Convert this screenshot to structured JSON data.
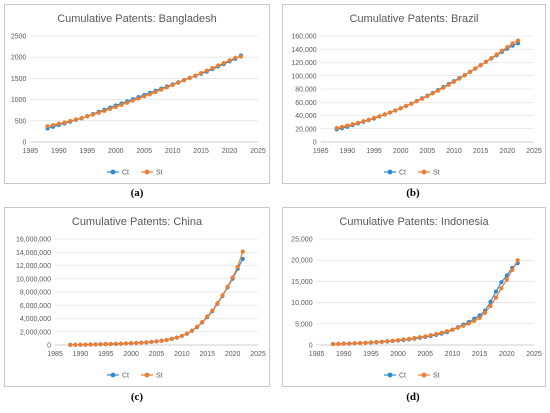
{
  "chart_data": [
    {
      "type": "line",
      "title": "Cumulative Patents: Bangladesh",
      "caption": "(a)",
      "xlim": [
        1985,
        2025
      ],
      "xticks": [
        "1985",
        "1990",
        "1995",
        "2000",
        "2005",
        "2010",
        "2015",
        "2020",
        "2025"
      ],
      "ylim": [
        0,
        2500
      ],
      "yticks": [
        "0",
        "500",
        "1000",
        "1500",
        "2000",
        "2500"
      ],
      "x": [
        1988,
        1989,
        1990,
        1991,
        1992,
        1993,
        1994,
        1995,
        1996,
        1997,
        1998,
        1999,
        2000,
        2001,
        2002,
        2003,
        2004,
        2005,
        2006,
        2007,
        2008,
        2009,
        2010,
        2011,
        2012,
        2013,
        2014,
        2015,
        2016,
        2017,
        2018,
        2019,
        2020,
        2021,
        2022
      ],
      "series": [
        {
          "name": "Ct",
          "color": "#2e8bd0",
          "values": [
            320,
            360,
            400,
            440,
            480,
            520,
            560,
            610,
            660,
            710,
            760,
            810,
            860,
            910,
            960,
            1010,
            1060,
            1110,
            1160,
            1210,
            1260,
            1310,
            1360,
            1410,
            1460,
            1510,
            1560,
            1610,
            1660,
            1720,
            1780,
            1840,
            1900,
            1960,
            2040
          ]
        },
        {
          "name": "St",
          "color": "#ed7d31",
          "values": [
            370,
            400,
            430,
            460,
            495,
            530,
            565,
            605,
            645,
            690,
            735,
            780,
            825,
            875,
            925,
            975,
            1025,
            1075,
            1125,
            1180,
            1235,
            1290,
            1345,
            1400,
            1455,
            1510,
            1565,
            1625,
            1685,
            1745,
            1805,
            1865,
            1925,
            1985,
            2015
          ]
        }
      ],
      "legend": [
        "Ct",
        "St"
      ]
    },
    {
      "type": "line",
      "title": "Cumulative Patents: Brazil",
      "caption": "(b)",
      "xlim": [
        1985,
        2025
      ],
      "xticks": [
        "1985",
        "1990",
        "1995",
        "2000",
        "2005",
        "2010",
        "2015",
        "2020",
        "2025"
      ],
      "ylim": [
        0,
        160000
      ],
      "yticks": [
        "0",
        "20,000",
        "40,000",
        "60,000",
        "80,000",
        "100,000",
        "120,000",
        "140,000",
        "160,000"
      ],
      "x": [
        1988,
        1989,
        1990,
        1991,
        1992,
        1993,
        1994,
        1995,
        1996,
        1997,
        1998,
        1999,
        2000,
        2001,
        2002,
        2003,
        2004,
        2005,
        2006,
        2007,
        2008,
        2009,
        2010,
        2011,
        2012,
        2013,
        2014,
        2015,
        2016,
        2017,
        2018,
        2019,
        2020,
        2021,
        2022
      ],
      "series": [
        {
          "name": "Ct",
          "color": "#2e8bd0",
          "values": [
            19000,
            21000,
            23000,
            25500,
            28000,
            30500,
            33000,
            35500,
            38500,
            41500,
            44500,
            47500,
            51000,
            54500,
            58000,
            62000,
            66000,
            70000,
            74000,
            78500,
            83000,
            87500,
            92000,
            96500,
            101000,
            106000,
            111000,
            116000,
            121000,
            126000,
            131000,
            136000,
            141000,
            145500,
            149000
          ]
        },
        {
          "name": "St",
          "color": "#ed7d31",
          "values": [
            21000,
            22800,
            24700,
            26800,
            29000,
            31300,
            33700,
            36200,
            38900,
            41700,
            44600,
            47700,
            50900,
            54300,
            57800,
            61500,
            65300,
            69200,
            73300,
            77500,
            81900,
            86400,
            91000,
            95700,
            100600,
            105600,
            110700,
            115900,
            121200,
            126600,
            132100,
            137700,
            143300,
            148900,
            153000
          ]
        }
      ],
      "legend": [
        "Ct",
        "St"
      ]
    },
    {
      "type": "line",
      "title": "Cumulative Patents: China",
      "caption": "(c)",
      "xlim": [
        1985,
        2025
      ],
      "xticks": [
        "1985",
        "1990",
        "1995",
        "2000",
        "2005",
        "2010",
        "2015",
        "2020",
        "2025"
      ],
      "ylim": [
        0,
        16000000
      ],
      "yticks": [
        "0",
        "2,000,000",
        "4,000,000",
        "6,000,000",
        "8,000,000",
        "10,000,000",
        "12,000,000",
        "14,000,000",
        "16,000,000"
      ],
      "x": [
        1988,
        1989,
        1990,
        1991,
        1992,
        1993,
        1994,
        1995,
        1996,
        1997,
        1998,
        1999,
        2000,
        2001,
        2002,
        2003,
        2004,
        2005,
        2006,
        2007,
        2008,
        2009,
        2010,
        2011,
        2012,
        2013,
        2014,
        2015,
        2016,
        2017,
        2018,
        2019,
        2020,
        2021,
        2022
      ],
      "series": [
        {
          "name": "Ct",
          "color": "#2e8bd0",
          "values": [
            20000,
            30000,
            40000,
            55000,
            70000,
            90000,
            110000,
            130000,
            150000,
            175000,
            200000,
            230000,
            265000,
            305000,
            350000,
            400000,
            460000,
            540000,
            640000,
            760000,
            920000,
            1120000,
            1370000,
            1700000,
            2150000,
            2700000,
            3400000,
            4200000,
            5100000,
            6200000,
            7400000,
            8700000,
            10000000,
            11500000,
            13000000
          ]
        },
        {
          "name": "St",
          "color": "#ed7d31",
          "values": [
            20000,
            30000,
            40000,
            55000,
            70000,
            90000,
            110000,
            130000,
            150000,
            175000,
            200000,
            230000,
            265000,
            305000,
            350000,
            400000,
            460000,
            540000,
            640000,
            760000,
            920000,
            1120000,
            1370000,
            1720000,
            2180000,
            2750000,
            3450000,
            4300000,
            5200000,
            6300000,
            7500000,
            8800000,
            10200000,
            11800000,
            14100000
          ]
        }
      ],
      "legend": [
        "Ct",
        "St"
      ]
    },
    {
      "type": "line",
      "title": "Cumulative Patents: Indonesia",
      "caption": "(d)",
      "xlim": [
        1985,
        2025
      ],
      "xticks": [
        "1985",
        "1990",
        "1995",
        "2000",
        "2005",
        "2010",
        "2015",
        "2020",
        "2025"
      ],
      "ylim": [
        0,
        25000
      ],
      "yticks": [
        "0",
        "5,000",
        "10,000",
        "15,000",
        "20,000",
        "25,000"
      ],
      "x": [
        1988,
        1989,
        1990,
        1991,
        1992,
        1993,
        1994,
        1995,
        1996,
        1997,
        1998,
        1999,
        2000,
        2001,
        2002,
        2003,
        2004,
        2005,
        2006,
        2007,
        2008,
        2009,
        2010,
        2011,
        2012,
        2013,
        2014,
        2015,
        2016,
        2017,
        2018,
        2019,
        2020,
        2021,
        2022
      ],
      "series": [
        {
          "name": "Ct",
          "color": "#2e8bd0",
          "values": [
            250,
            280,
            320,
            360,
            410,
            460,
            520,
            590,
            660,
            740,
            830,
            930,
            1050,
            1180,
            1330,
            1500,
            1690,
            1900,
            2130,
            2390,
            2680,
            3000,
            3600,
            4200,
            4800,
            5400,
            6200,
            7000,
            8100,
            10200,
            12600,
            14800,
            16400,
            18200,
            19300
          ]
        },
        {
          "name": "St",
          "color": "#ed7d31",
          "values": [
            200,
            240,
            280,
            330,
            380,
            440,
            510,
            590,
            680,
            780,
            890,
            1010,
            1140,
            1290,
            1450,
            1630,
            1830,
            2050,
            2300,
            2580,
            2890,
            3240,
            3630,
            4060,
            4540,
            5080,
            5690,
            6380,
            7600,
            9200,
            11200,
            13400,
            15400,
            17700,
            20000
          ]
        }
      ],
      "legend": [
        "Ct",
        "St"
      ]
    }
  ]
}
